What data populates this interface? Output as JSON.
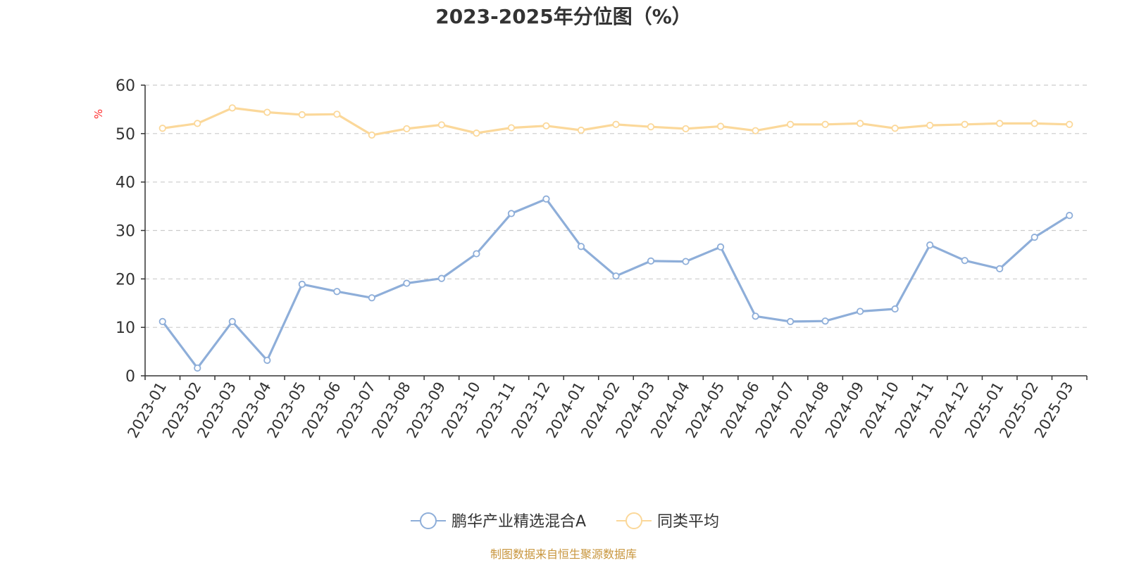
{
  "chart_data": {
    "type": "line",
    "title": "2023-2025年分位图（%）",
    "ylabel": "%",
    "ylim": [
      0,
      60
    ],
    "yticks": [
      "0",
      "10",
      "20",
      "30",
      "40",
      "50",
      "60"
    ],
    "grid": true,
    "legend_position": "bottom-center",
    "categories": [
      "2023-01",
      "2023-02",
      "2023-03",
      "2023-04",
      "2023-05",
      "2023-06",
      "2023-07",
      "2023-08",
      "2023-09",
      "2023-10",
      "2023-11",
      "2023-12",
      "2024-01",
      "2024-02",
      "2024-03",
      "2024-04",
      "2024-05",
      "2024-06",
      "2024-07",
      "2024-08",
      "2024-09",
      "2024-10",
      "2024-11",
      "2024-12",
      "2025-01",
      "2025-02",
      "2025-03"
    ],
    "series": [
      {
        "name": "鹏华产业精选混合A",
        "color": "#8eaed9",
        "values": [
          11.2,
          1.6,
          11.2,
          3.2,
          18.9,
          17.4,
          16.1,
          19.1,
          20.1,
          25.2,
          33.5,
          36.5,
          26.7,
          20.6,
          23.7,
          23.6,
          26.6,
          12.3,
          11.2,
          11.3,
          13.3,
          13.8,
          27.0,
          23.8,
          22.1,
          28.6,
          33.1
        ]
      },
      {
        "name": "同类平均",
        "color": "#fbd89a",
        "values": [
          51.1,
          52.1,
          55.3,
          54.4,
          53.9,
          54.0,
          49.7,
          51.0,
          51.8,
          50.1,
          51.2,
          51.6,
          50.7,
          51.9,
          51.4,
          51.0,
          51.5,
          50.6,
          51.9,
          51.9,
          52.1,
          51.1,
          51.7,
          51.9,
          52.1,
          52.1,
          51.9
        ]
      }
    ],
    "source": "制图数据来自恒生聚源数据库"
  }
}
